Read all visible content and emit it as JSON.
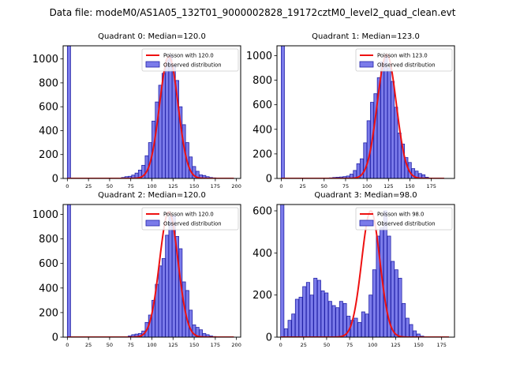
{
  "figure": {
    "suptitle": "Data file: modeM0/AS1A05_132T01_9000002828_19172cztM0_level2_quad_clean.evt"
  },
  "style": {
    "bar_fill": "#7b7bea",
    "bar_edge": "#2323a8",
    "curve": "#ee1111",
    "axis": "#000000"
  },
  "chart_data": [
    {
      "type": "bar",
      "title": "Quadrant 0: Median=120.0",
      "legend": [
        "Poisson with 120.0",
        "Observed distribution"
      ],
      "legend_position": "top-right",
      "median": 120.0,
      "xlim": [
        -5,
        205
      ],
      "ylim": [
        0,
        1110
      ],
      "xticks": [
        0,
        25,
        50,
        75,
        100,
        125,
        150,
        175,
        200
      ],
      "yticks": [
        0,
        200,
        400,
        600,
        800,
        1000
      ],
      "bin_width": 3.8,
      "bins": [
        [
          0,
          1110
        ],
        [
          64,
          8
        ],
        [
          68,
          15
        ],
        [
          72,
          18
        ],
        [
          76,
          28
        ],
        [
          80,
          45
        ],
        [
          84,
          70
        ],
        [
          88,
          110
        ],
        [
          92,
          190
        ],
        [
          96,
          300
        ],
        [
          100,
          480
        ],
        [
          104,
          640
        ],
        [
          108,
          780
        ],
        [
          112,
          880
        ],
        [
          116,
          990
        ],
        [
          120,
          1030
        ],
        [
          124,
          950
        ],
        [
          128,
          820
        ],
        [
          132,
          600
        ],
        [
          136,
          450
        ],
        [
          140,
          300
        ],
        [
          144,
          180
        ],
        [
          148,
          100
        ],
        [
          152,
          60
        ],
        [
          156,
          30
        ],
        [
          160,
          25
        ],
        [
          164,
          15
        ],
        [
          168,
          8
        ],
        [
          172,
          5
        ],
        [
          176,
          3
        ]
      ],
      "poisson": {
        "lambda": 120.0,
        "peak": 1020,
        "x_range": [
          0,
          197
        ]
      }
    },
    {
      "type": "bar",
      "title": "Quadrant 1: Median=123.0",
      "legend": [
        "Poisson with 123.0",
        "Observed distribution"
      ],
      "legend_position": "top-right",
      "median": 123.0,
      "xlim": [
        -5,
        202
      ],
      "ylim": [
        0,
        1080
      ],
      "xticks": [
        0,
        25,
        50,
        75,
        100,
        125,
        150,
        175
      ],
      "yticks": [
        0,
        200,
        400,
        600,
        800,
        1000
      ],
      "bin_width": 3.7,
      "bins": [
        [
          0,
          1080
        ],
        [
          56,
          5
        ],
        [
          60,
          8
        ],
        [
          64,
          10
        ],
        [
          68,
          12
        ],
        [
          72,
          15
        ],
        [
          76,
          20
        ],
        [
          80,
          35
        ],
        [
          84,
          65
        ],
        [
          88,
          120
        ],
        [
          92,
          160
        ],
        [
          96,
          290
        ],
        [
          100,
          470
        ],
        [
          104,
          620
        ],
        [
          108,
          690
        ],
        [
          112,
          820
        ],
        [
          116,
          950
        ],
        [
          120,
          1000
        ],
        [
          124,
          900
        ],
        [
          128,
          790
        ],
        [
          132,
          580
        ],
        [
          136,
          370
        ],
        [
          140,
          280
        ],
        [
          144,
          170
        ],
        [
          148,
          130
        ],
        [
          152,
          80
        ],
        [
          156,
          60
        ],
        [
          160,
          40
        ],
        [
          164,
          30
        ],
        [
          168,
          10
        ]
      ],
      "poisson": {
        "lambda": 123.0,
        "peak": 1010,
        "x_range": [
          0,
          190
        ]
      }
    },
    {
      "type": "bar",
      "title": "Quadrant 2: Median=120.0",
      "legend": [
        "Poisson with 120.0",
        "Observed distribution"
      ],
      "legend_position": "top-right",
      "median": 120.0,
      "xlim": [
        -5,
        205
      ],
      "ylim": [
        0,
        1080
      ],
      "xticks": [
        0,
        25,
        50,
        75,
        100,
        125,
        150,
        175,
        200
      ],
      "yticks": [
        0,
        200,
        400,
        600,
        800,
        1000
      ],
      "bin_width": 3.8,
      "bins": [
        [
          0,
          1080
        ],
        [
          72,
          10
        ],
        [
          76,
          20
        ],
        [
          80,
          25
        ],
        [
          84,
          30
        ],
        [
          88,
          50
        ],
        [
          92,
          120
        ],
        [
          96,
          180
        ],
        [
          100,
          300
        ],
        [
          104,
          430
        ],
        [
          108,
          580
        ],
        [
          112,
          640
        ],
        [
          116,
          830
        ],
        [
          120,
          980
        ],
        [
          124,
          990
        ],
        [
          128,
          820
        ],
        [
          132,
          720
        ],
        [
          136,
          450
        ],
        [
          140,
          380
        ],
        [
          144,
          220
        ],
        [
          148,
          100
        ],
        [
          152,
          80
        ],
        [
          156,
          60
        ],
        [
          160,
          30
        ],
        [
          164,
          20
        ],
        [
          168,
          10
        ],
        [
          172,
          5
        ]
      ],
      "poisson": {
        "lambda": 120.0,
        "peak": 1020,
        "x_range": [
          0,
          197
        ]
      }
    },
    {
      "type": "bar",
      "title": "Quadrant 3: Median=98.0",
      "legend": [
        "Poisson with 98.0",
        "Observed distribution"
      ],
      "legend_position": "top-right",
      "median": 98.0,
      "xlim": [
        -4,
        189
      ],
      "ylim": [
        0,
        630
      ],
      "xticks": [
        0,
        25,
        50,
        75,
        100,
        125,
        150,
        175
      ],
      "yticks": [
        0,
        200,
        400,
        600
      ],
      "bin_width": 3.6,
      "bins": [
        [
          0,
          630
        ],
        [
          4,
          40
        ],
        [
          8,
          80
        ],
        [
          12,
          110
        ],
        [
          16,
          180
        ],
        [
          20,
          190
        ],
        [
          24,
          240
        ],
        [
          28,
          260
        ],
        [
          32,
          200
        ],
        [
          36,
          280
        ],
        [
          40,
          270
        ],
        [
          44,
          220
        ],
        [
          48,
          210
        ],
        [
          52,
          170
        ],
        [
          56,
          150
        ],
        [
          60,
          140
        ],
        [
          64,
          170
        ],
        [
          68,
          160
        ],
        [
          72,
          100
        ],
        [
          76,
          80
        ],
        [
          80,
          90
        ],
        [
          84,
          70
        ],
        [
          88,
          120
        ],
        [
          92,
          110
        ],
        [
          96,
          200
        ],
        [
          100,
          320
        ],
        [
          104,
          480
        ],
        [
          108,
          520
        ],
        [
          112,
          600
        ],
        [
          116,
          480
        ],
        [
          120,
          360
        ],
        [
          124,
          320
        ],
        [
          128,
          280
        ],
        [
          132,
          160
        ],
        [
          136,
          90
        ],
        [
          140,
          60
        ],
        [
          144,
          30
        ],
        [
          148,
          15
        ],
        [
          152,
          5
        ]
      ],
      "poisson": {
        "lambda": 98.0,
        "peak": 600,
        "x_range": [
          0,
          183
        ]
      }
    }
  ]
}
